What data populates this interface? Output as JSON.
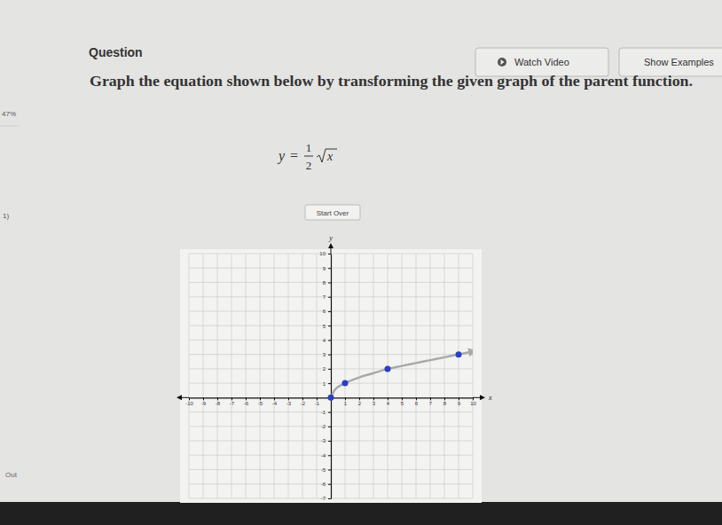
{
  "page": {
    "heading": "Question",
    "watch_video": "Watch Video",
    "show_examples": "Show Examples",
    "instruction": "Graph the equation shown below by transforming the given graph of the parent function.",
    "progress": "47%",
    "item_number": "1)",
    "side_link": "Out",
    "equation": {
      "lhs": "y",
      "relation": "=",
      "numerator": "1",
      "denominator": "2",
      "radicand": "x"
    },
    "start_over": "Start Over"
  },
  "chart_data": {
    "type": "line",
    "xlabel": "x",
    "ylabel": "y",
    "xlim": [
      -10,
      10
    ],
    "ylim": [
      -7,
      10
    ],
    "xticks": [
      -10,
      -9,
      -8,
      -7,
      -6,
      -5,
      -4,
      -3,
      -2,
      -1,
      1,
      2,
      3,
      4,
      5,
      6,
      7,
      8,
      9,
      10
    ],
    "yticks": [
      -7,
      -6,
      -5,
      -4,
      -3,
      -2,
      -1,
      1,
      2,
      3,
      4,
      5,
      6,
      7,
      8,
      9,
      10
    ],
    "grid": true,
    "series": [
      {
        "x": [
          0,
          0.25,
          1,
          2,
          3,
          4,
          5,
          6,
          7,
          8,
          9,
          10
        ],
        "values": [
          0,
          0.5,
          1,
          1.4,
          1.7,
          2,
          2.2,
          2.4,
          2.6,
          2.8,
          3,
          3.2
        ],
        "color": "#a9a9a9",
        "line_style": "solid",
        "marker": "none"
      },
      {
        "x": [
          0,
          1,
          4,
          9
        ],
        "values": [
          0,
          1,
          2,
          3
        ],
        "color": "#2a3fc4",
        "line_style": "none",
        "marker": "circle"
      }
    ]
  }
}
